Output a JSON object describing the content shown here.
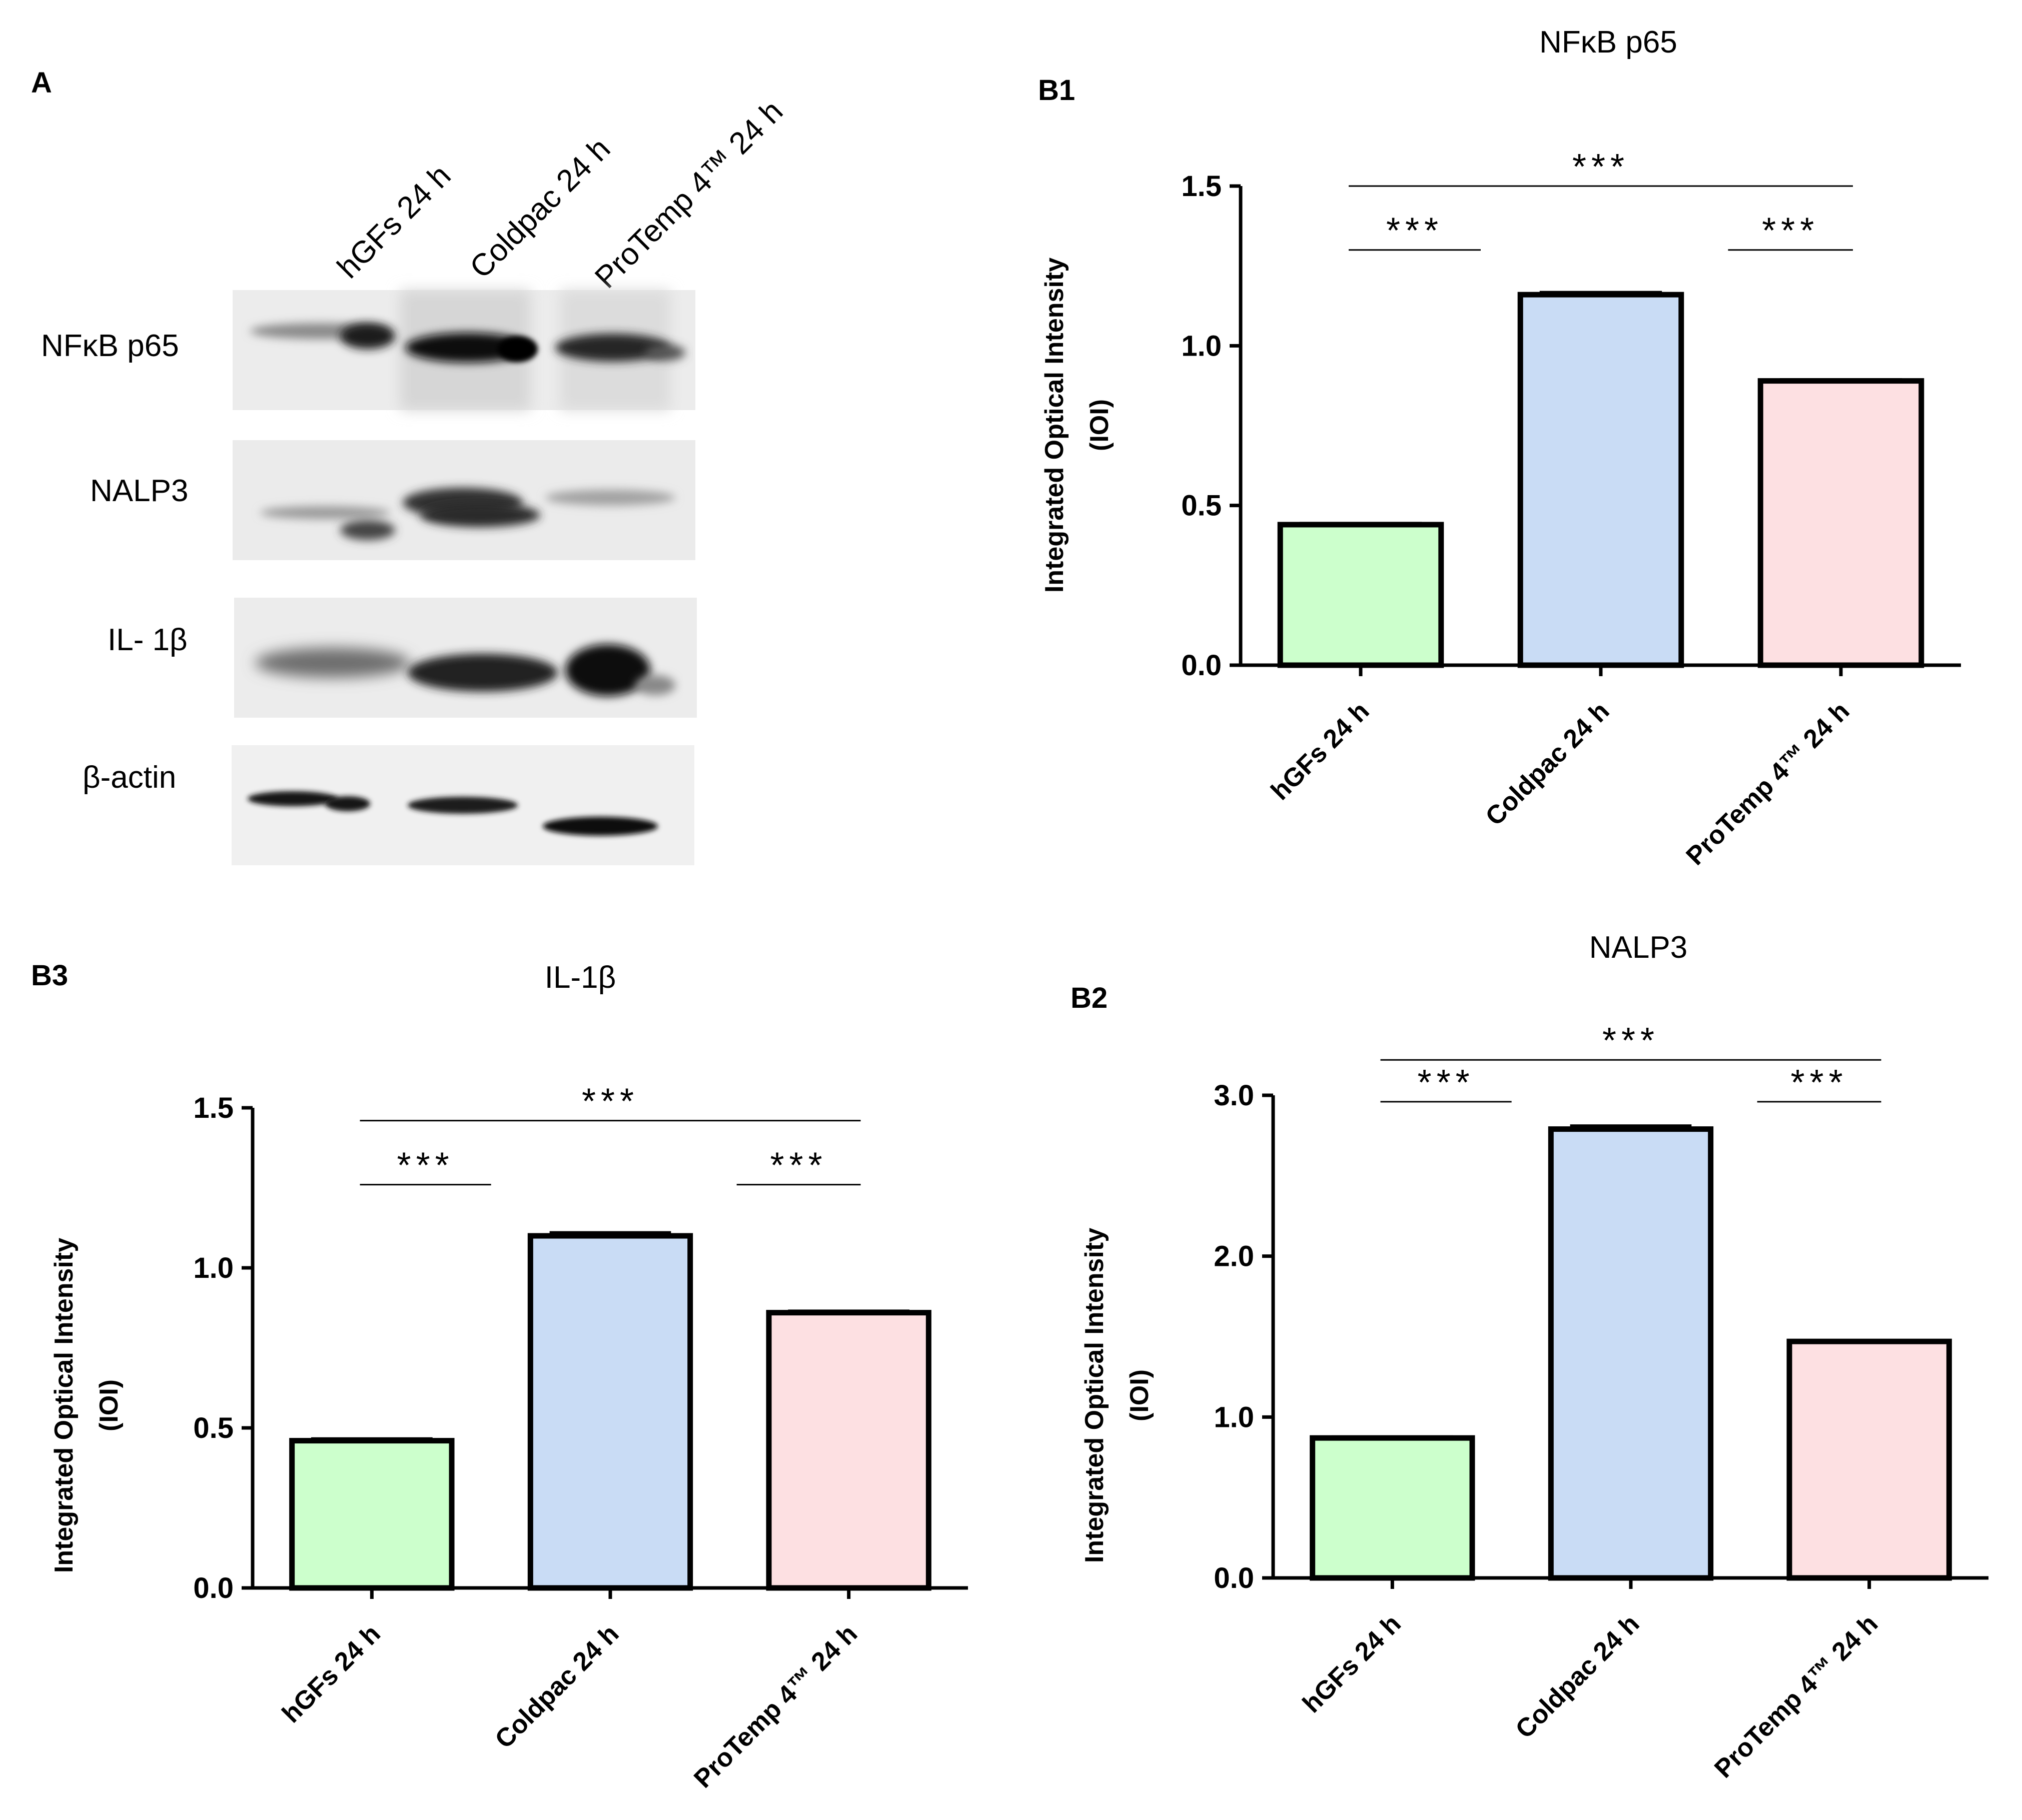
{
  "figure": {
    "panel_a_label": "A",
    "western_blot": {
      "lanes": [
        "hGFs 24 h",
        "Coldpac 24 h",
        "ProTemp 4™ 24 h"
      ],
      "rows": [
        "NFκB p65",
        "NALP3",
        "IL- 1β",
        "β-actin"
      ]
    }
  },
  "chart_data": [
    {
      "panel": "B1",
      "type": "bar",
      "title": "NFκB p65",
      "categories": [
        "hGFs 24 h",
        "Coldpac 24 h",
        "ProTemp 4™ 24 h"
      ],
      "values": [
        0.44,
        1.16,
        0.89
      ],
      "errors": [
        0.004,
        0.007,
        0.004
      ],
      "ylim": [
        0,
        1.5
      ],
      "yticks": [
        "0.0",
        "0.5",
        "1.0",
        "1.5"
      ],
      "ytick_values": [
        0,
        0.5,
        1.0,
        1.5
      ],
      "ylabel_line1": "Integrated  Optical Intensity",
      "ylabel_line2": "(IOI)",
      "colors": [
        "#ccffcc",
        "#c9dcf5",
        "#fde0e2"
      ],
      "significance": [
        {
          "from": 0,
          "to": 2,
          "label": "***",
          "level": 1.5
        },
        {
          "from": 0,
          "to": 1,
          "label": "***",
          "level": 1.3
        },
        {
          "from": 1,
          "to": 2,
          "label": "***",
          "level": 1.3
        }
      ]
    },
    {
      "panel": "B2",
      "type": "bar",
      "title": "NALP3",
      "categories": [
        "hGFs 24 h",
        "Coldpac 24 h",
        "ProTemp 4™ 24 h"
      ],
      "values": [
        0.87,
        2.79,
        1.47
      ],
      "errors": [
        0.007,
        0.02,
        0.006
      ],
      "ylim": [
        0,
        3.0
      ],
      "yticks": [
        "0.0",
        "1.0",
        "2.0",
        "3.0"
      ],
      "ytick_values": [
        0,
        1.0,
        2.0,
        3.0
      ],
      "ylabel_line1": "Integrated  Optical Intensity",
      "ylabel_line2": "(IOI)",
      "colors": [
        "#ccffcc",
        "#c9dcf5",
        "#fde0e2"
      ],
      "significance": [
        {
          "from": 0,
          "to": 2,
          "label": "***",
          "level": 3.22
        },
        {
          "from": 0,
          "to": 1,
          "label": "***",
          "level": 2.96
        },
        {
          "from": 1,
          "to": 2,
          "label": "***",
          "level": 2.96
        }
      ]
    },
    {
      "panel": "B3",
      "type": "bar",
      "title": "IL-1β",
      "categories": [
        "hGFs 24 h",
        "Coldpac 24 h",
        "ProTemp 4™ 24 h"
      ],
      "values": [
        0.46,
        1.1,
        0.86
      ],
      "errors": [
        0.006,
        0.01,
        0.005
      ],
      "ylim": [
        0,
        1.5
      ],
      "yticks": [
        "0.0",
        "0.5",
        "1.0",
        "1.5"
      ],
      "ytick_values": [
        0,
        0.5,
        1.0,
        1.5
      ],
      "ylabel_line1": "Integrated  Optical Intensity",
      "ylabel_line2": "(IOI)",
      "colors": [
        "#ccffcc",
        "#c9dcf5",
        "#fde0e2"
      ],
      "significance": [
        {
          "from": 0,
          "to": 2,
          "label": "***",
          "level": 1.46
        },
        {
          "from": 0,
          "to": 1,
          "label": "***",
          "level": 1.26
        },
        {
          "from": 1,
          "to": 2,
          "label": "***",
          "level": 1.26
        }
      ]
    }
  ]
}
